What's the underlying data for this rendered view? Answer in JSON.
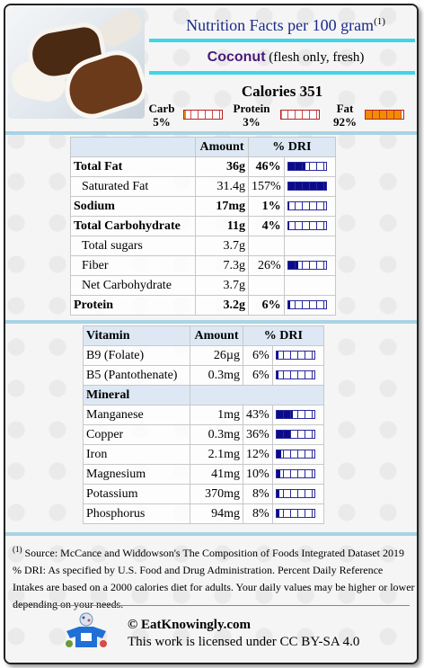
{
  "header": {
    "title": "Nutrition Facts per 100 gram",
    "title_sup": "(1)",
    "food_name": "Coconut",
    "food_desc": "(flesh only, fresh)"
  },
  "summary": {
    "calories": "Calories 351",
    "macros": [
      {
        "label": "Carb",
        "value": "5%",
        "level": 0.05
      },
      {
        "label": "Protein",
        "value": "3%",
        "level": 0.03
      },
      {
        "label": "Fat",
        "value": "92%",
        "level": 0.92
      }
    ]
  },
  "main_table": {
    "headers": [
      "",
      "Amount",
      "% DRI"
    ],
    "rows": [
      {
        "name": "Total Fat",
        "amount": "36g",
        "dri": "46%",
        "level": 0.46,
        "bold": true
      },
      {
        "name": "Saturated Fat",
        "amount": "31.4g",
        "dri": "157%",
        "level": 1.0,
        "bold": false
      },
      {
        "name": "Sodium",
        "amount": "17mg",
        "dri": "1%",
        "level": 0.01,
        "bold": true
      },
      {
        "name": "Total Carbohydrate",
        "amount": "11g",
        "dri": "4%",
        "level": 0.04,
        "bold": true
      },
      {
        "name": "Total sugars",
        "amount": "3.7g",
        "dri": "",
        "level": null,
        "bold": false
      },
      {
        "name": "Fiber",
        "amount": "7.3g",
        "dri": "26%",
        "level": 0.26,
        "bold": false
      },
      {
        "name": "Net Carbohydrate",
        "amount": "3.7g",
        "dri": "",
        "level": null,
        "bold": false
      },
      {
        "name": "Protein",
        "amount": "3.2g",
        "dri": "6%",
        "level": 0.06,
        "bold": true
      }
    ]
  },
  "micro_table": {
    "vitamin_header": [
      "Vitamin",
      "Amount",
      "% DRI"
    ],
    "vitamins": [
      {
        "name": "B9 (Folate)",
        "amount": "26µg",
        "dri": "6%",
        "level": 0.06
      },
      {
        "name": "B5 (Pantothenate)",
        "amount": "0.3mg",
        "dri": "6%",
        "level": 0.06
      }
    ],
    "mineral_header": "Mineral",
    "minerals": [
      {
        "name": "Manganese",
        "amount": "1mg",
        "dri": "43%",
        "level": 0.43
      },
      {
        "name": "Copper",
        "amount": "0.3mg",
        "dri": "36%",
        "level": 0.36
      },
      {
        "name": "Iron",
        "amount": "2.1mg",
        "dri": "12%",
        "level": 0.12
      },
      {
        "name": "Magnesium",
        "amount": "41mg",
        "dri": "10%",
        "level": 0.1
      },
      {
        "name": "Potassium",
        "amount": "370mg",
        "dri": "8%",
        "level": 0.08
      },
      {
        "name": "Phosphorus",
        "amount": "94mg",
        "dri": "8%",
        "level": 0.08
      }
    ]
  },
  "footnote": {
    "sup": "(1)",
    "source": "Source: McCance and Widdowson's The Composition of Foods Integrated Dataset 2019",
    "dri_note": "% DRI: As specified by U.S. Food and Drug Administration. Percent Daily Reference Intakes are based on a 2000 calories diet for adults. Your daily values may be higher or lower depending on your needs."
  },
  "credit": {
    "site": "© EatKnowingly.com",
    "license": "This work is licensed under CC BY-SA 4.0"
  },
  "colors": {
    "title": "#1a2a8a",
    "accent_bar": "#3ed6e6",
    "separator": "#a8d4e4",
    "dri_fill": "#0a0a8a",
    "fat_fill": "#f08c00"
  }
}
